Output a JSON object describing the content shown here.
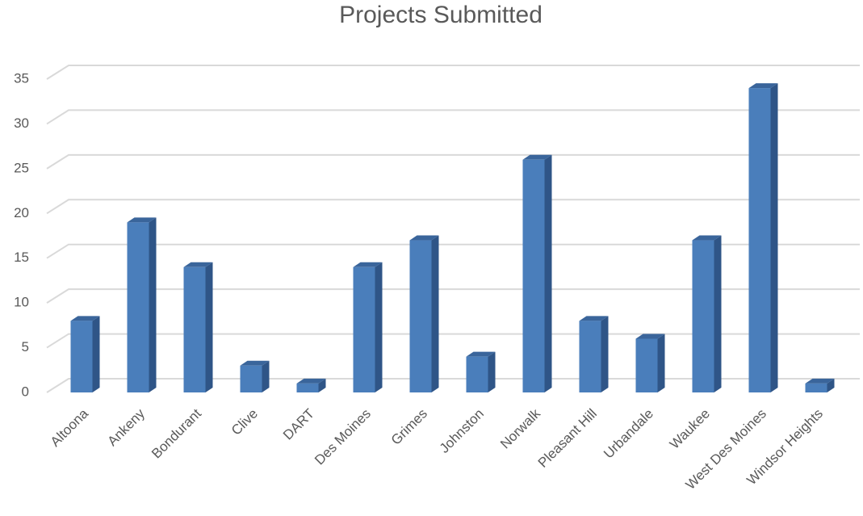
{
  "chart_data": {
    "type": "bar",
    "title": "Projects Submitted",
    "categories": [
      "Altoona",
      "Ankeny",
      "Bondurant",
      "Clive",
      "DART",
      "Des Moines",
      "Grimes",
      "Johnston",
      "Norwalk",
      "Pleasant Hill",
      "Urbandale",
      "Waukee",
      "West Des Moines",
      "Windsor Heights"
    ],
    "values": [
      8,
      19,
      14,
      3,
      1,
      14,
      17,
      4,
      26,
      8,
      6,
      17,
      34,
      1
    ],
    "color": "#4a7ebb",
    "ylim": [
      0,
      35
    ],
    "yticks": [
      0,
      5,
      10,
      15,
      20,
      25,
      30,
      35
    ],
    "grid": true
  }
}
